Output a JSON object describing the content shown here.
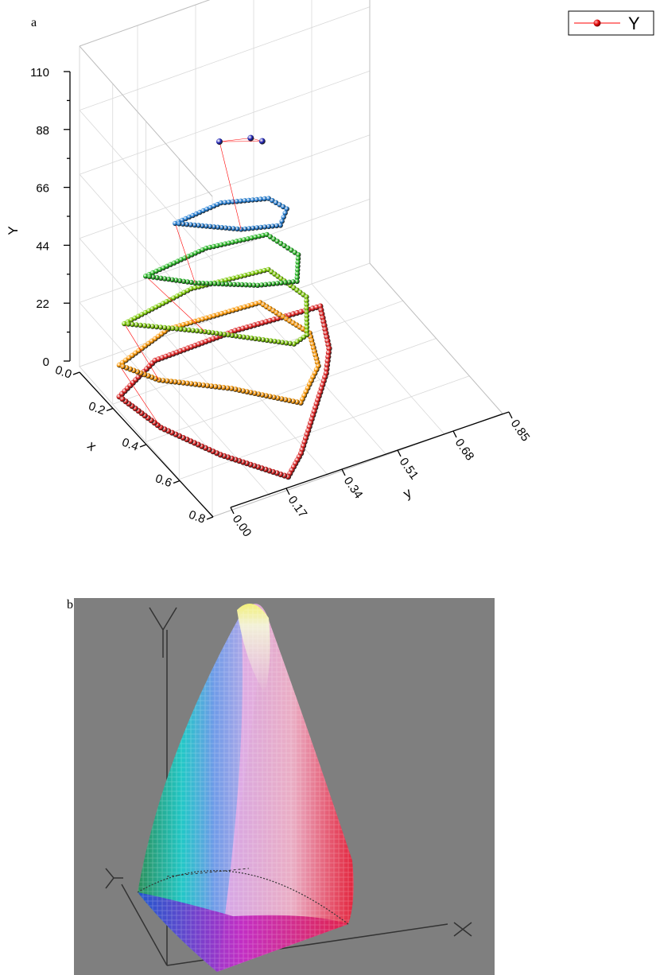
{
  "panel_a_label": "a",
  "panel_b_label": "b",
  "legend": {
    "entry": "Y"
  },
  "chart_data": [
    {
      "type": "scatter3d",
      "x_axis_label": "x",
      "y_axis_label": "y",
      "z_axis_label": "Y",
      "x_ticks": [
        "0.0",
        "0.2",
        "0.4",
        "0.6",
        "0.8"
      ],
      "y_ticks": [
        "0.00",
        "0.17",
        "0.34",
        "0.51",
        "0.68",
        "0.85"
      ],
      "z_ticks": [
        "0",
        "22",
        "44",
        "66",
        "88",
        "110"
      ],
      "xlim": [
        0,
        0.8
      ],
      "ylim": [
        0,
        0.85
      ],
      "zlim": [
        0,
        110
      ],
      "grid": true,
      "legend_position": "top-right",
      "series_line_color": "#ff0000",
      "series": [
        {
          "Y": 0,
          "color": "#dd1a1a",
          "outline": [
            [
              0.16,
              0.04
            ],
            [
              0.06,
              0.2
            ],
            [
              0.05,
              0.45
            ],
            [
              0.07,
              0.7
            ],
            [
              0.26,
              0.63
            ],
            [
              0.36,
              0.57
            ],
            [
              0.66,
              0.34
            ],
            [
              0.74,
              0.26
            ],
            [
              0.55,
              0.15
            ],
            [
              0.35,
              0.07
            ]
          ]
        },
        {
          "Y": 12,
          "color": "#ff9900",
          "outline": [
            [
              0.16,
              0.04
            ],
            [
              0.08,
              0.23
            ],
            [
              0.1,
              0.5
            ],
            [
              0.3,
              0.55
            ],
            [
              0.45,
              0.5
            ],
            [
              0.58,
              0.38
            ],
            [
              0.42,
              0.25
            ],
            [
              0.28,
              0.1
            ]
          ]
        },
        {
          "Y": 28,
          "color": "#7ccf00",
          "outline": [
            [
              0.17,
              0.05
            ],
            [
              0.12,
              0.28
            ],
            [
              0.15,
              0.5
            ],
            [
              0.32,
              0.53
            ],
            [
              0.48,
              0.45
            ],
            [
              0.5,
              0.4
            ],
            [
              0.32,
              0.22
            ]
          ]
        },
        {
          "Y": 46,
          "color": "#22bb22",
          "outline": [
            [
              0.2,
              0.1
            ],
            [
              0.17,
              0.3
            ],
            [
              0.2,
              0.47
            ],
            [
              0.33,
              0.5
            ],
            [
              0.44,
              0.44
            ],
            [
              0.4,
              0.34
            ],
            [
              0.3,
              0.2
            ]
          ]
        },
        {
          "Y": 64,
          "color": "#1f7fd8",
          "outline": [
            [
              0.22,
              0.18
            ],
            [
              0.2,
              0.33
            ],
            [
              0.25,
              0.45
            ],
            [
              0.32,
              0.47
            ],
            [
              0.38,
              0.42
            ],
            [
              0.34,
              0.32
            ]
          ]
        },
        {
          "Y": 92,
          "color": "#1a1fb5",
          "outline": [
            [
              0.25,
              0.3
            ],
            [
              0.28,
              0.38
            ],
            [
              0.31,
              0.4
            ]
          ]
        }
      ]
    },
    {
      "type": "surface3d",
      "x_axis_label": "X",
      "y_axis_label": "Y",
      "z_axis_label": "Y"
    }
  ]
}
